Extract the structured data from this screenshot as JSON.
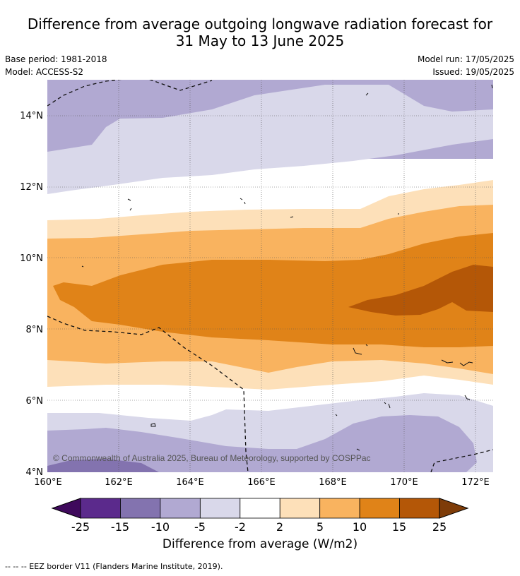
{
  "header": {
    "title_line1": "Difference from average outgoing longwave radiation forecast for",
    "title_line2": "31 May to 13 June 2025",
    "base_period": "Base period: 1981-2018",
    "model": "Model: ACCESS-S2",
    "model_run": "Model run: 17/05/2025",
    "issued": "Issued: 19/05/2025"
  },
  "copyright": "© Commonwealth of Australia 2025, Bureau of Meteorology, supported by COSPPac",
  "footnote": "-- -- -- EEZ border V11 (Flanders Marine Institute, 2019).",
  "chart_data": {
    "type": "heatmap",
    "title": "Difference from average outgoing longwave radiation forecast for 31 May to 13 June 2025",
    "xlim": [
      160,
      172.5
    ],
    "ylim": [
      4,
      15
    ],
    "x_ticks": [
      160,
      162,
      164,
      166,
      168,
      170,
      172
    ],
    "x_tick_labels": [
      "160°E",
      "162°E",
      "164°E",
      "166°E",
      "168°E",
      "170°E",
      "172°E"
    ],
    "y_ticks": [
      4,
      6,
      8,
      10,
      12,
      14
    ],
    "y_tick_labels": [
      "4°N",
      "6°N",
      "8°N",
      "10°N",
      "12°N",
      "14°N"
    ],
    "grid": true,
    "colorbar": {
      "label": "Difference from average (W/m2)",
      "tick_labels": [
        "-25",
        "-15",
        "-10",
        "-5",
        "-2",
        "2",
        "5",
        "10",
        "15",
        "25"
      ],
      "colors": [
        "#3f0a5c",
        "#5b2a8c",
        "#8373af",
        "#b1a9d2",
        "#d9d8ea",
        "#ffffff",
        "#fde0b9",
        "#f9b35f",
        "#e08318",
        "#b45707",
        "#7e3c08"
      ]
    },
    "contour_levels": [
      {
        "level": "-15 to -10",
        "color": "#8373af"
      },
      {
        "level": "-10 to -5",
        "color": "#b1a9d2"
      },
      {
        "level": "-5 to -2",
        "color": "#d9d8ea"
      },
      {
        "level": "-2 to 2",
        "color": "#ffffff"
      },
      {
        "level": "2 to 5",
        "color": "#fde0b9"
      },
      {
        "level": "5 to 10",
        "color": "#f9b35f"
      },
      {
        "level": "10 to 15",
        "color": "#e08318"
      },
      {
        "level": "15 to 25",
        "color": "#b45707"
      }
    ]
  }
}
